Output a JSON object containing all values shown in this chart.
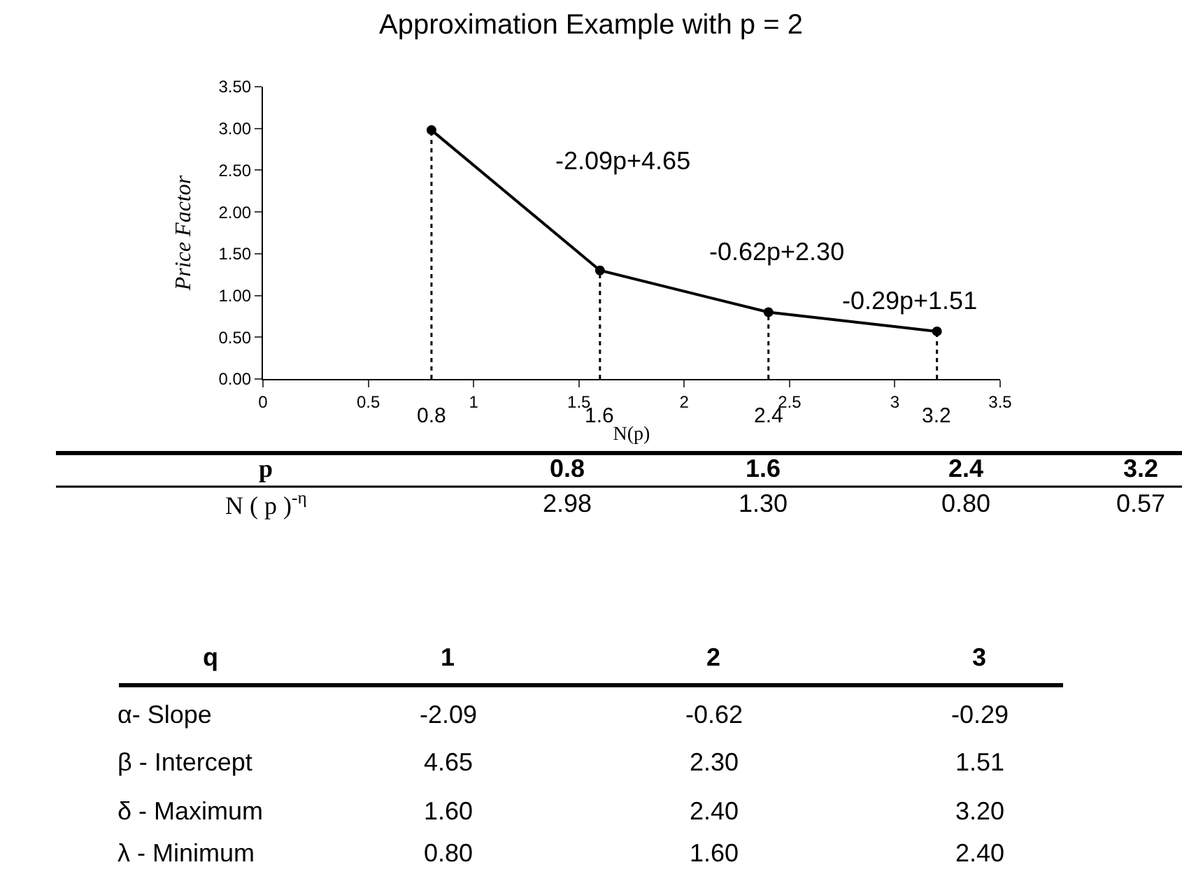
{
  "chart_data": {
    "type": "line",
    "title": "Approximation Example with p = 2",
    "xlabel": "N(p)",
    "ylabel": "Price Factor",
    "x": [
      0.8,
      1.6,
      2.4,
      3.2
    ],
    "series": [
      {
        "color": "#000000",
        "values": [
          2.98,
          1.3,
          0.8,
          0.57
        ]
      }
    ],
    "xlim": [
      0,
      3.5
    ],
    "xticks": [
      0,
      0.5,
      1,
      1.5,
      2,
      2.5,
      3,
      3.5
    ],
    "ylim": [
      0,
      3.5
    ],
    "yticks": [
      {
        "value": 0,
        "label": "0.00"
      },
      {
        "value": 0.5,
        "label": "0.50"
      },
      {
        "value": 1,
        "label": "1.00"
      },
      {
        "value": 1.5,
        "label": "1.50"
      },
      {
        "value": 2,
        "label": "2.00"
      },
      {
        "value": 2.5,
        "label": "2.50"
      },
      {
        "value": 3,
        "label": "3.00"
      },
      {
        "value": 3.5,
        "label": "3.50"
      }
    ],
    "ref_lines": [
      {
        "axis": "x",
        "value": 0.8,
        "label": "0.8",
        "line_style": "dotted"
      },
      {
        "axis": "x",
        "value": 1.6,
        "label": "1.6",
        "line_style": "dotted"
      },
      {
        "axis": "x",
        "value": 2.4,
        "label": "2.4",
        "line_style": "dotted"
      },
      {
        "axis": "x",
        "value": 3.2,
        "label": "3.2",
        "line_style": "dotted"
      }
    ],
    "annotations": [
      "-2.09p+4.65",
      "-0.62p+2.30",
      "-0.29p+1.51",
      "p",
      "0.8",
      "1.6",
      "2.4",
      "3.2",
      "N ( p )$^{-η}$",
      "2.98",
      "1.30",
      "0.80",
      "0.57",
      "q",
      "1",
      "2",
      "3",
      "α- Slope",
      "-2.09",
      "-0.62",
      "-0.29",
      "β - Intercept",
      "4.65",
      "2.30",
      "1.51",
      "δ - Maximum",
      "1.60",
      "2.40",
      "3.20",
      "λ - Minimum",
      "0.80",
      "1.60",
      "2.40"
    ],
    "marker": "circle",
    "line_style": "solid"
  }
}
